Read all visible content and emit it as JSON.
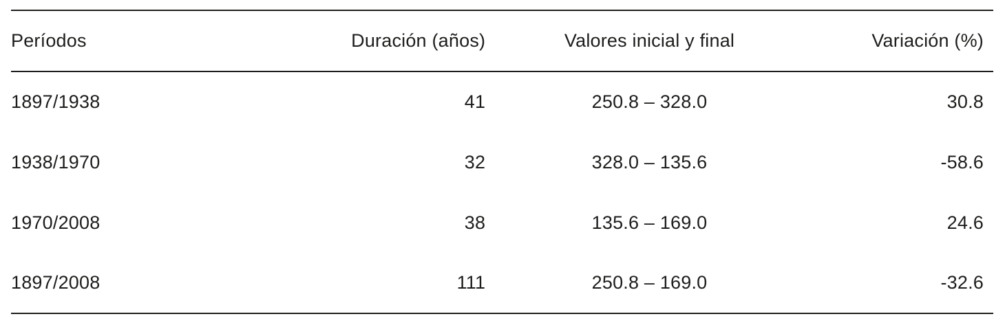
{
  "table": {
    "columns": [
      {
        "label": "Períodos"
      },
      {
        "label": "Duración (años)"
      },
      {
        "label": "Valores inicial y final"
      },
      {
        "label": "Variación (%)"
      }
    ],
    "rows": [
      {
        "periodo": "1897/1938",
        "duracion": "41",
        "valores": "250.8 – 328.0",
        "variacion": "30.8"
      },
      {
        "periodo": "1938/1970",
        "duracion": "32",
        "valores": "328.0 – 135.6",
        "variacion": "-58.6"
      },
      {
        "periodo": "1970/2008",
        "duracion": "38",
        "valores": "135.6 – 169.0",
        "variacion": "24.6"
      },
      {
        "periodo": "1897/2008",
        "duracion": "111",
        "valores": "250.8 – 169.0",
        "variacion": "-32.6"
      }
    ]
  }
}
